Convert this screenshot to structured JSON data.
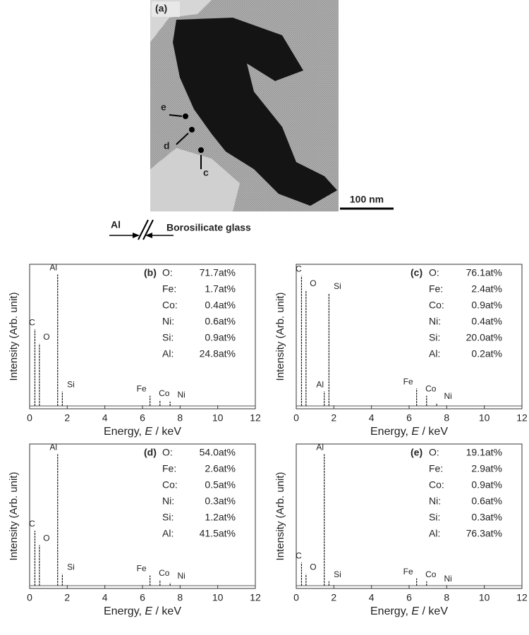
{
  "image": {
    "panel": "(a)",
    "points": [
      "e",
      "d",
      "c"
    ],
    "scale_bar": "100 nm"
  },
  "interface": {
    "left": "Al",
    "right": "Borosilicate glass"
  },
  "chart_data": [
    {
      "type": "stem",
      "panel": "(b)",
      "ylabel": "Intensity (Arb. unit)",
      "xlabel": {
        "pre": "Energy, ",
        "var": "E",
        "post": " / keV"
      },
      "xlim": [
        0,
        12
      ],
      "xticks": [
        0,
        2,
        4,
        6,
        8,
        10,
        12
      ],
      "ylim": [
        0,
        100
      ],
      "color": "#222222",
      "categories": [
        "C",
        "O",
        "Al",
        "Si",
        "Fe",
        "Co",
        "Ni"
      ],
      "x": [
        0.28,
        0.52,
        1.49,
        1.74,
        6.4,
        6.93,
        7.47
      ],
      "values": [
        55,
        45,
        93,
        12,
        9,
        6,
        5
      ],
      "composition": [
        [
          "O:",
          "71.7at%"
        ],
        [
          "Fe:",
          "1.7at%"
        ],
        [
          "Co:",
          "0.4at%"
        ],
        [
          "Ni:",
          "0.6at%"
        ],
        [
          "Si:",
          "0.9at%"
        ],
        [
          "Al:",
          "24.8at%"
        ]
      ]
    },
    {
      "type": "stem",
      "panel": "(c)",
      "ylabel": "Intensity (Arb. unit)",
      "xlabel": {
        "pre": "Energy, ",
        "var": "E",
        "post": " / keV"
      },
      "xlim": [
        0,
        12
      ],
      "xticks": [
        0,
        2,
        4,
        6,
        8,
        10,
        12
      ],
      "ylim": [
        0,
        100
      ],
      "color": "#222222",
      "categories": [
        "C",
        "O",
        "Al",
        "Si",
        "Fe",
        "Co",
        "Ni"
      ],
      "x": [
        0.28,
        0.52,
        1.49,
        1.74,
        6.4,
        6.93,
        7.47
      ],
      "values": [
        92,
        82,
        12,
        80,
        14,
        9,
        4
      ],
      "composition": [
        [
          "O:",
          "76.1at%"
        ],
        [
          "Fe:",
          "2.4at%"
        ],
        [
          "Co:",
          "0.9at%"
        ],
        [
          "Ni:",
          "0.4at%"
        ],
        [
          "Si:",
          "20.0at%"
        ],
        [
          "Al:",
          "0.2at%"
        ]
      ]
    },
    {
      "type": "stem",
      "panel": "(d)",
      "ylabel": "Intensity (Arb. unit)",
      "xlabel": {
        "pre": "Energy, ",
        "var": "E",
        "post": " / keV"
      },
      "xlim": [
        0,
        12
      ],
      "xticks": [
        0,
        2,
        4,
        6,
        8,
        10,
        12
      ],
      "ylim": [
        0,
        100
      ],
      "color": "#222222",
      "categories": [
        "C",
        "O",
        "Al",
        "Si",
        "Fe",
        "Co",
        "Ni"
      ],
      "x": [
        0.28,
        0.52,
        1.49,
        1.74,
        6.4,
        6.93,
        7.47
      ],
      "values": [
        40,
        30,
        93,
        10,
        9,
        6,
        4
      ],
      "composition": [
        [
          "O:",
          "54.0at%"
        ],
        [
          "Fe:",
          "2.6at%"
        ],
        [
          "Co:",
          "0.5at%"
        ],
        [
          "Ni:",
          "0.3at%"
        ],
        [
          "Si:",
          "1.2at%"
        ],
        [
          "Al:",
          "41.5at%"
        ]
      ]
    },
    {
      "type": "stem",
      "panel": "(e)",
      "ylabel": "Intensity (Arb. unit)",
      "xlabel": {
        "pre": "Energy, ",
        "var": "E",
        "post": " / keV"
      },
      "xlim": [
        0,
        12
      ],
      "xticks": [
        0,
        2,
        4,
        6,
        8,
        10,
        12
      ],
      "ylim": [
        0,
        100
      ],
      "color": "#222222",
      "categories": [
        "C",
        "O",
        "Al",
        "Si",
        "Fe",
        "Co",
        "Ni"
      ],
      "x": [
        0.28,
        0.52,
        1.49,
        1.74,
        6.4,
        6.93,
        7.47
      ],
      "values": [
        18,
        10,
        93,
        5,
        7,
        5,
        2
      ],
      "composition": [
        [
          "O:",
          "19.1at%"
        ],
        [
          "Fe:",
          "2.9at%"
        ],
        [
          "Co:",
          "0.9at%"
        ],
        [
          "Ni:",
          "0.6at%"
        ],
        [
          "Si:",
          "0.3at%"
        ],
        [
          "Al:",
          "76.3at%"
        ]
      ]
    }
  ]
}
